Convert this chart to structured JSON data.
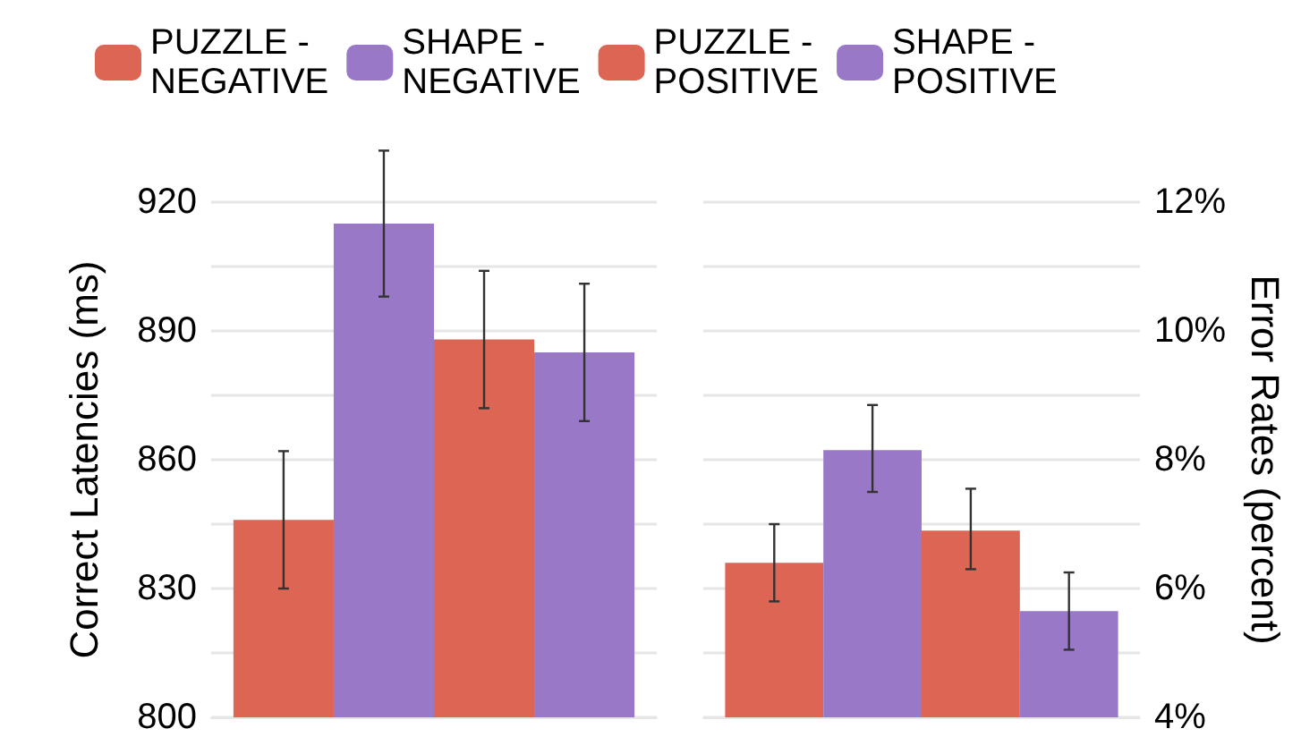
{
  "chart_data": [
    {
      "type": "bar",
      "ylabel": "Correct Latencies (ms)",
      "categories": [
        null
      ],
      "legend": "top",
      "grid": "y",
      "ylim": [
        800,
        920
      ],
      "yticks": [
        800,
        {
          "value": 815,
          "label": null
        },
        830,
        {
          "value": 845,
          "label": null
        },
        860,
        {
          "value": 875,
          "label": null
        },
        890,
        {
          "value": 905,
          "label": null
        },
        920
      ],
      "series": [
        {
          "name": "PUZZLE -\nNEGATIVE",
          "color": "#dd6553",
          "values": [
            846
          ],
          "errors": [
            [
              830,
              862
            ]
          ]
        },
        {
          "name": "SHAPE -\nNEGATIVE",
          "color": "#9a78c8",
          "values": [
            915
          ],
          "errors": [
            [
              898,
              932
            ]
          ]
        },
        {
          "name": "PUZZLE -\nPOSITIVE",
          "color": "#dd6553",
          "values": [
            888
          ],
          "errors": [
            [
              872,
              904
            ]
          ]
        },
        {
          "name": "SHAPE -\nPOSITIVE",
          "color": "#9a78c8",
          "values": [
            885
          ],
          "errors": [
            [
              869,
              901
            ]
          ]
        }
      ]
    },
    {
      "type": "bar",
      "ylabel": "Error Rates (percent)",
      "categories": [
        null
      ],
      "grid": "y",
      "ylim": [
        4,
        12
      ],
      "yticks": [
        {
          "value": 4,
          "label": "4%"
        },
        {
          "value": 5,
          "label": null
        },
        {
          "value": 6,
          "label": "6%"
        },
        {
          "value": 7,
          "label": null
        },
        {
          "value": 8,
          "label": "8%"
        },
        {
          "value": 9,
          "label": null
        },
        {
          "value": 10,
          "label": "10%"
        },
        {
          "value": 11,
          "label": null
        },
        {
          "value": 12,
          "label": "12%"
        }
      ],
      "series": [
        {
          "color": "#dd6553",
          "values": [
            6.4
          ],
          "errors": [
            [
              5.8,
              7.0
            ]
          ]
        },
        {
          "color": "#9a78c8",
          "values": [
            8.15
          ],
          "errors": [
            [
              7.5,
              8.85
            ]
          ]
        },
        {
          "color": "#dd6553",
          "values": [
            6.9
          ],
          "errors": [
            [
              6.3,
              7.55
            ]
          ]
        },
        {
          "color": "#9a78c8",
          "values": [
            5.65
          ],
          "errors": [
            [
              5.05,
              6.25
            ]
          ]
        }
      ]
    }
  ]
}
